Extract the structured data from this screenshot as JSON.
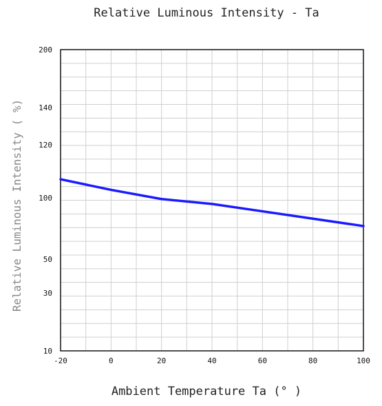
{
  "chart_data": {
    "type": "line",
    "title": "Relative Luminous Intensity - Ta",
    "xlabel": "Ambient Temperature Ta (° )",
    "ylabel": "Relative Luminous Intensity ( %)",
    "xlim": [
      -20,
      100
    ],
    "ylim": [
      10,
      200
    ],
    "x_ticks": [
      -20,
      0,
      20,
      40,
      60,
      80,
      100
    ],
    "x_tick_labels": [
      "-20",
      "0",
      "20",
      "40",
      "60",
      "80",
      "100"
    ],
    "y_ticks": [
      {
        "value": 200,
        "label": "200"
      },
      {
        "value": 140,
        "label": "140"
      },
      {
        "value": 120,
        "label": "120"
      },
      {
        "value": 100,
        "label": "100"
      },
      {
        "value": 50,
        "label": "50"
      },
      {
        "value": 30,
        "label": "30"
      },
      {
        "value": 10,
        "label": "10"
      }
    ],
    "grid": true,
    "series": [
      {
        "color": "#1a1aff",
        "x": [
          -20,
          0,
          20,
          40,
          60,
          80,
          100
        ],
        "y": [
          107,
          103,
          99,
          95,
          89,
          83,
          77
        ]
      }
    ]
  }
}
